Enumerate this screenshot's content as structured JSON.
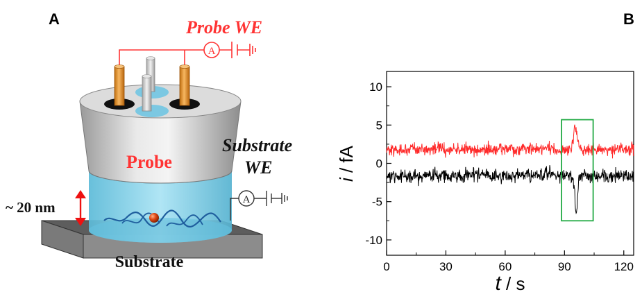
{
  "panel_a": {
    "letter": "A",
    "probe_we_label": "Probe WE",
    "probe_label": "Probe",
    "substrate_we_line1": "Substrate",
    "substrate_we_line2": "WE",
    "gap_label": "~ 20 nm",
    "substrate_label": "Substrate",
    "ammeter_symbol": "A",
    "colors": {
      "accent_red": "#ff3333",
      "electrode": "#e8962e",
      "solution": "#7fd0ea",
      "substrate": "#6e6e6e"
    }
  },
  "panel_b": {
    "letter": "B"
  },
  "chart_data": {
    "type": "line",
    "ylabel_var": "i",
    "ylabel_unit": "fA",
    "xlabel_var": "t",
    "xlabel_unit": "s",
    "xlim": [
      0,
      125
    ],
    "ylim": [
      -12,
      12
    ],
    "x_ticks": [
      0,
      30,
      60,
      90,
      120
    ],
    "y_ticks": [
      10,
      5,
      0,
      -5,
      -10
    ],
    "y_tick_labels": [
      "10",
      "5",
      "0",
      "-5",
      "-10"
    ],
    "series": [
      {
        "color": "#ff2a2a",
        "baseline": 1.8,
        "noise": 0.55,
        "event_t": 95.5,
        "event_amp": 2.7,
        "event_width": 1.4
      },
      {
        "color": "#000000",
        "baseline": -1.6,
        "noise": 0.6,
        "event_t": 96.0,
        "event_amp": -5.2,
        "event_width": 0.9
      }
    ],
    "highlight_box": {
      "x0": 88.5,
      "x1": 104.5,
      "y0": -7.5,
      "y1": 5.7,
      "color": "#22aa44"
    },
    "grid": false
  }
}
